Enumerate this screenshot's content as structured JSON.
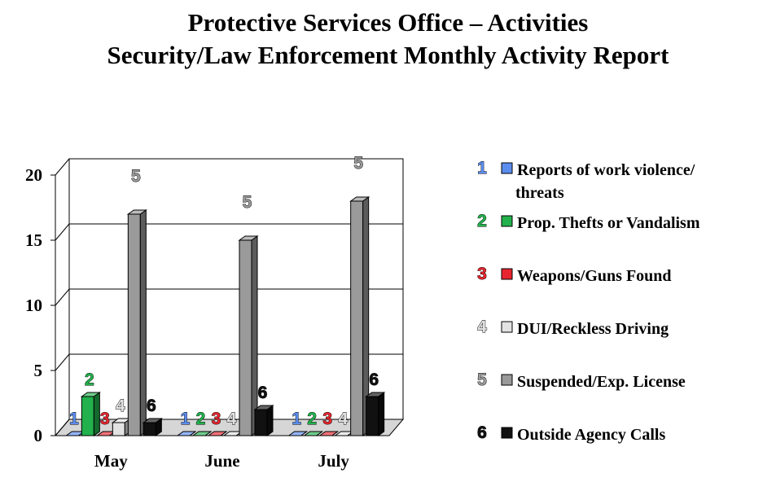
{
  "header": {
    "title": "Protective Services Office – Activities",
    "subtitle": "Security/Law Enforcement Monthly Activity Report"
  },
  "chart_data": {
    "type": "bar",
    "title": "Protective Services Office – Activities",
    "subtitle": "Security/Law Enforcement Monthly Activity Report",
    "categories": [
      "May",
      "June",
      "July"
    ],
    "ylim": [
      0,
      20
    ],
    "yticks": [
      0,
      5,
      10,
      15,
      20
    ],
    "grid": true,
    "legend_position": "right",
    "series": [
      {
        "name": "Reports of work violence/ threats",
        "marker": "1",
        "color": "#5b8def",
        "values": [
          0,
          0,
          0
        ]
      },
      {
        "name": "Prop. Thefts or Vandalism",
        "marker": "2",
        "color": "#22b14c",
        "values": [
          3,
          0,
          0
        ]
      },
      {
        "name": "Weapons/Guns Found",
        "marker": "3",
        "color": "#e8252e",
        "values": [
          0,
          0,
          0
        ]
      },
      {
        "name": "DUI/Reckless Driving",
        "marker": "4",
        "color": "#e2e2e2",
        "values": [
          1,
          0,
          0
        ]
      },
      {
        "name": "Suspended/Exp. License",
        "marker": "5",
        "color": "#9a9a9a",
        "values": [
          17,
          15,
          18
        ]
      },
      {
        "name": "Outside Agency Calls",
        "marker": "6",
        "color": "#111111",
        "values": [
          1,
          2,
          3
        ]
      }
    ]
  }
}
